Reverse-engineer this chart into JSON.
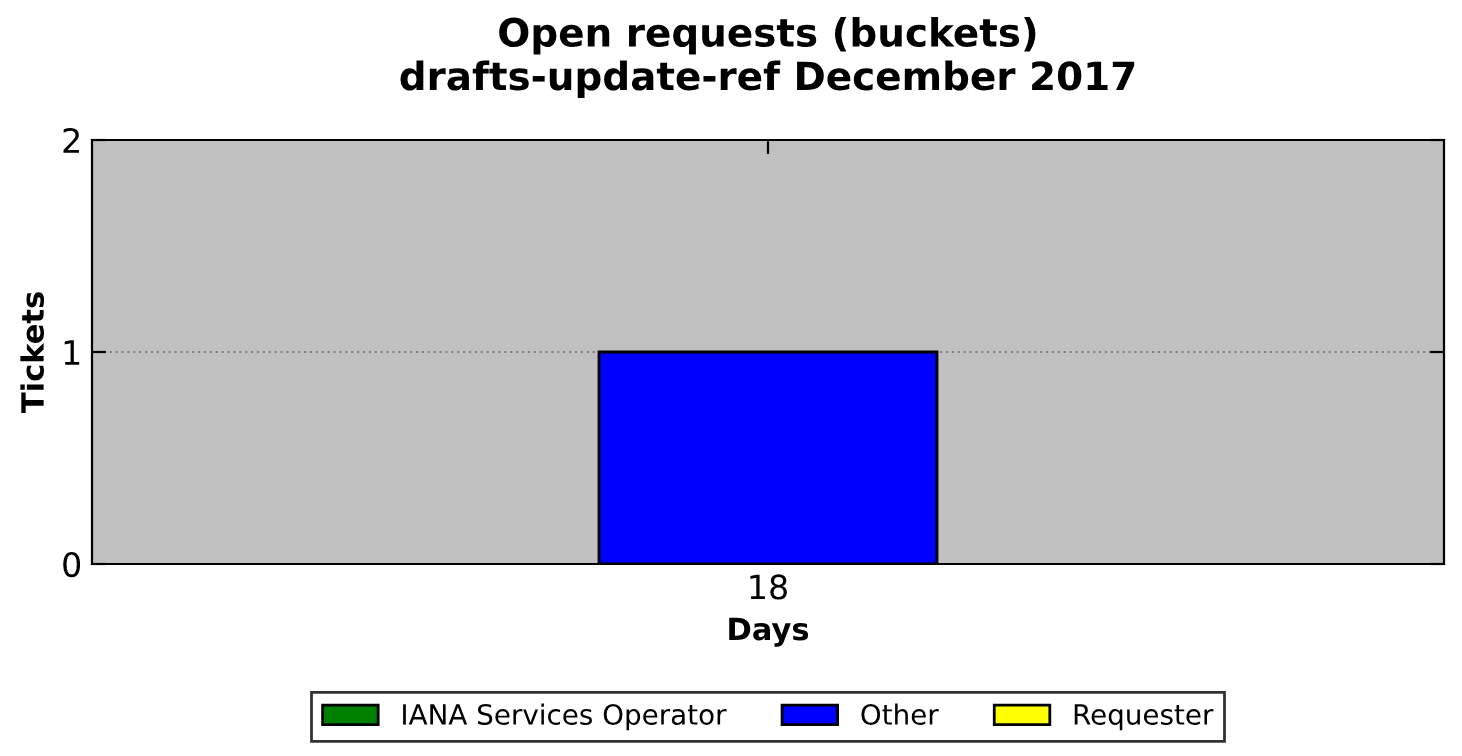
{
  "chart_data": {
    "type": "bar",
    "title": "Open requests (buckets)\ndrafts-update-ref December 2017",
    "xlabel": "Days",
    "ylabel": "Tickets",
    "categories": [
      "18"
    ],
    "stacked": true,
    "series": [
      {
        "name": "IANA Services Operator",
        "color": "#008000",
        "values": [
          0
        ]
      },
      {
        "name": "Other",
        "color": "#0000ff",
        "values": [
          1
        ]
      },
      {
        "name": "Requester",
        "color": "#ffff00",
        "values": [
          0
        ]
      }
    ],
    "ylim": [
      0,
      2
    ],
    "yticks": [
      0,
      1,
      2
    ],
    "grid": "y",
    "legend": "bottom"
  }
}
